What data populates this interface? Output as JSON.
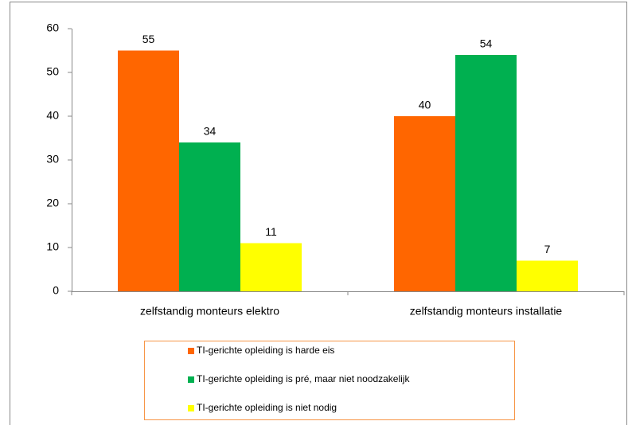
{
  "chart_data": {
    "type": "bar",
    "categories": [
      "zelfstandig monteurs elektro",
      "zelfstandig monteurs installatie"
    ],
    "series": [
      {
        "name": "TI-gerichte opleiding is harde eis",
        "color": "#ff6600",
        "values": [
          55,
          40
        ]
      },
      {
        "name": "TI-gerichte opleiding is pré, maar niet noodzakelijk",
        "color": "#00b050",
        "values": [
          34,
          54
        ]
      },
      {
        "name": "TI-gerichte opleiding is niet nodig",
        "color": "#ffff00",
        "values": [
          11,
          7
        ]
      }
    ],
    "ylim": [
      0,
      60
    ],
    "yticks": [
      0,
      10,
      20,
      30,
      40,
      50,
      60
    ],
    "grid": false,
    "legend": "bottom"
  }
}
